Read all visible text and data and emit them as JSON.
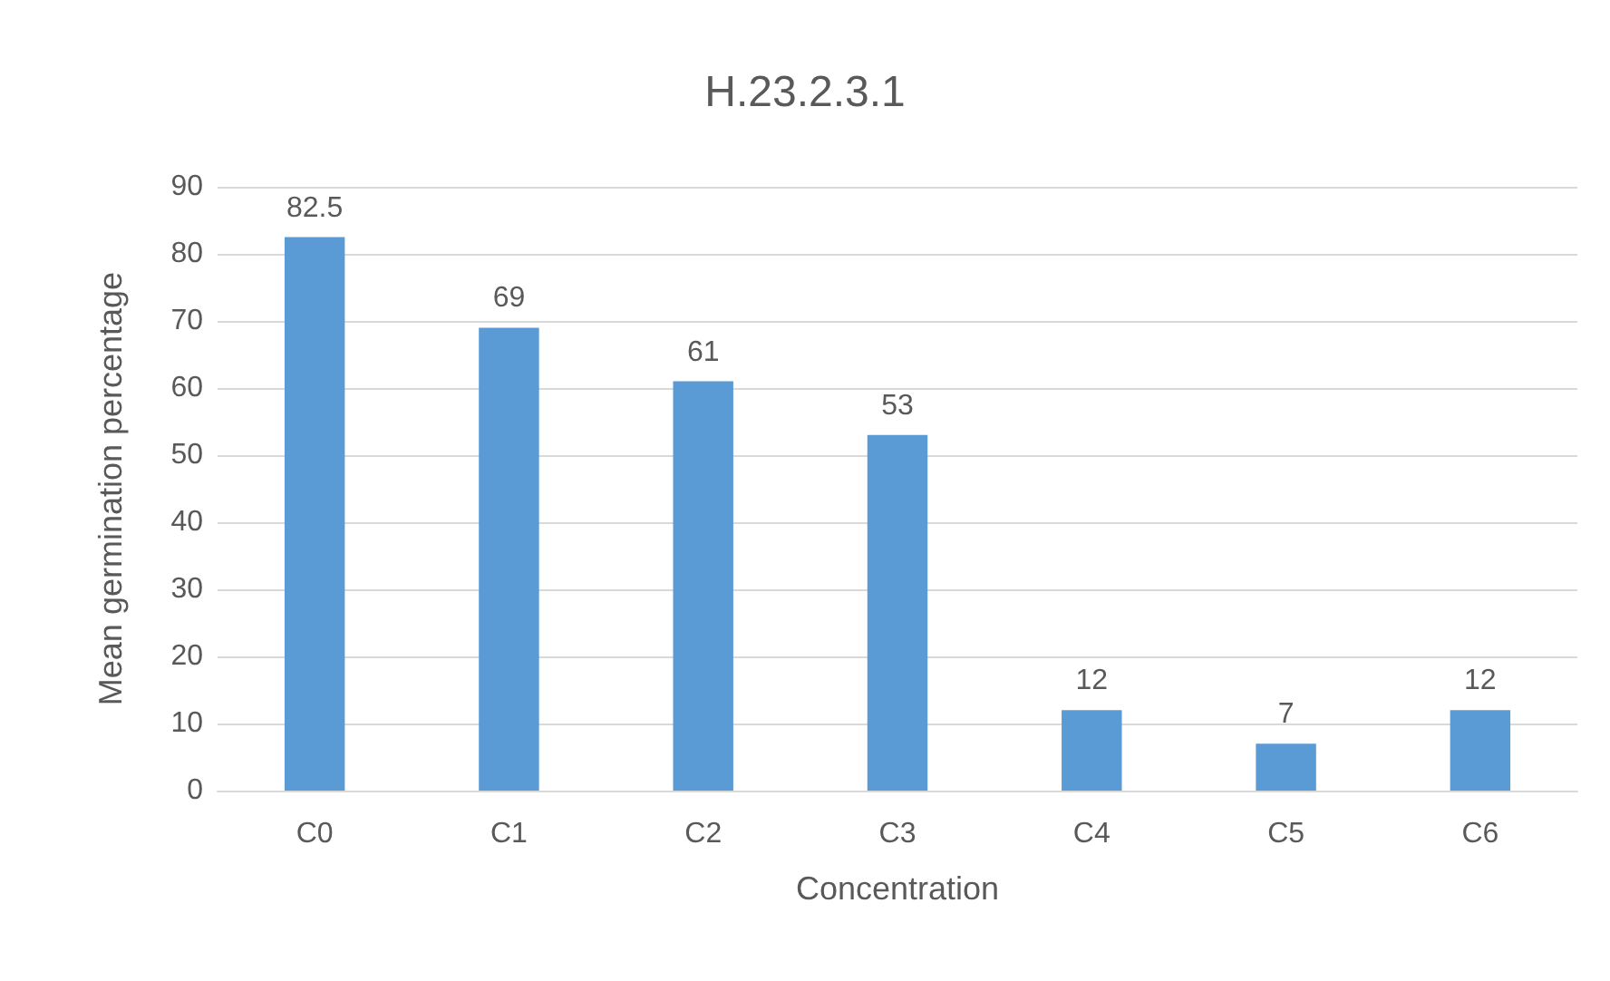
{
  "chart_data": {
    "type": "bar",
    "title": "H.23.2.3.1",
    "xlabel": "Concentration",
    "ylabel": "Mean germination percentage",
    "categories": [
      "C0",
      "C1",
      "C2",
      "C3",
      "C4",
      "C5",
      "C6"
    ],
    "values": [
      82.5,
      69,
      61,
      53,
      12,
      7,
      12
    ],
    "color": "#5b9bd5",
    "ylim": [
      0,
      90
    ],
    "yticks": [
      0,
      10,
      20,
      30,
      40,
      50,
      60,
      70,
      80,
      90
    ],
    "grid": "y",
    "data_labels": true
  }
}
